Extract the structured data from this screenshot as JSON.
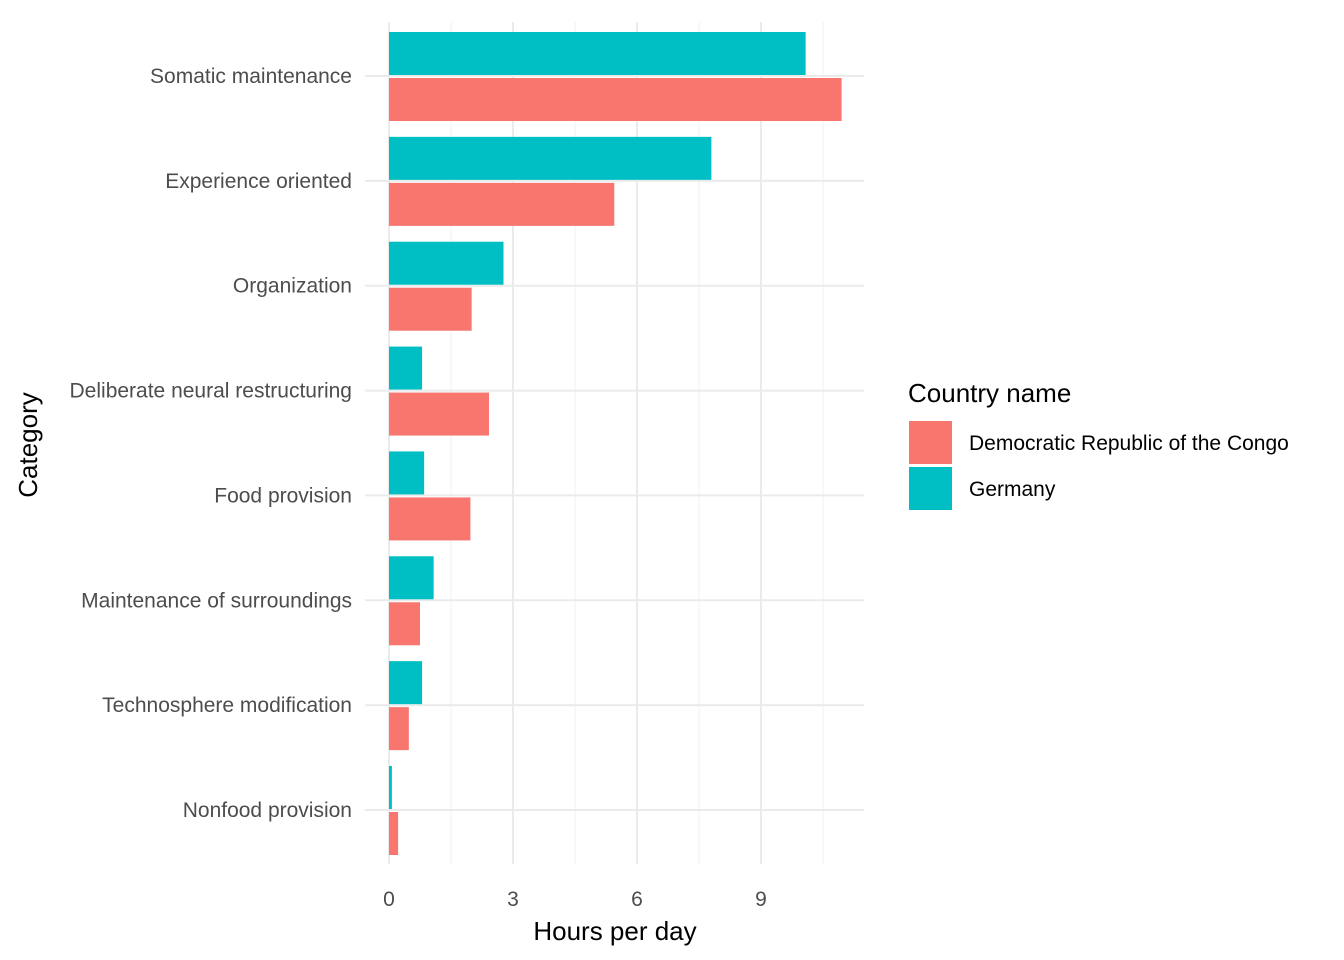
{
  "chart_data": {
    "type": "bar",
    "orientation": "horizontal",
    "grouping": "dodge",
    "xlabel": "Hours per day",
    "ylabel": "Category",
    "xlim": [
      0,
      11
    ],
    "x_ticks": [
      0,
      3,
      6,
      9
    ],
    "grid": true,
    "legend": {
      "title": "Country name",
      "placement": "right"
    },
    "categories": [
      "Somatic maintenance",
      "Experience oriented",
      "Organization",
      "Deliberate neural restructuring",
      "Food provision",
      "Maintenance of surroundings",
      "Technosphere modification",
      "Nonfood provision"
    ],
    "series": [
      {
        "name": "Democratic Republic of the Congo",
        "color": "#F8766D",
        "values": [
          10.95,
          5.45,
          2.0,
          2.42,
          1.97,
          0.75,
          0.48,
          0.22
        ]
      },
      {
        "name": "Germany",
        "color": "#00BFC4",
        "values": [
          10.08,
          7.8,
          2.77,
          0.8,
          0.85,
          1.08,
          0.8,
          0.07
        ]
      }
    ]
  }
}
